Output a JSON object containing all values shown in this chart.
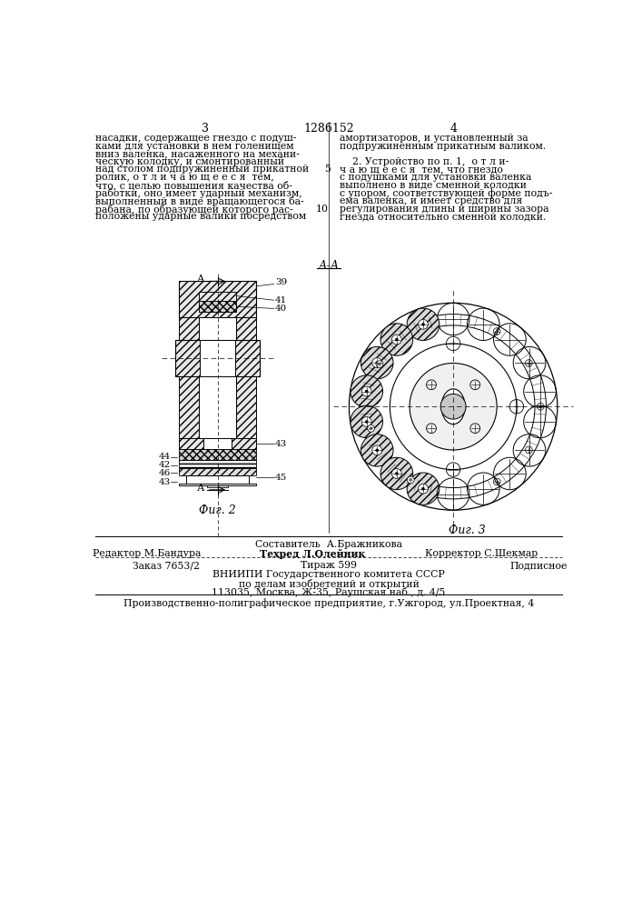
{
  "page_num_left": "3",
  "page_num_center": "1286152",
  "page_num_right": "4",
  "text_left_lines": [
    "насадки, содержащее гнездо с подуш-",
    "ками для установки в нем голенищем",
    "вниз валенка, насаженного на механи-",
    "ческую колодку, и смонтированный",
    "над столом подпружиненный прикатной",
    "ролик, о т л и ч а ю щ е е с я  тем,",
    "что, с целью повышения качества об-",
    "работки, оно имеет ударный механизм,",
    "выполненный в виде вращающегося ба-",
    "рабана, по образующей которого рас-",
    "положены ударные валики посредством"
  ],
  "text_right_lines": [
    "амортизаторов, и установленный за",
    "подпружиненным прикатным валиком.",
    "",
    "    2. Устройство по п. 1,  о т л и-",
    "ч а ю щ е е с я  тем, что гнездо",
    "с подушками для установки валенка",
    "выполнено в виде сменной колодки",
    "с упором, соответствующей форме подъ-",
    "ема валенка, и имеет средство для",
    "регулирования длины и ширины зазора",
    "гнезда относительно сменной колодки."
  ],
  "line_num_5_row": 4,
  "line_num_10_row": 9,
  "section_label": "А-А",
  "fig2_label": "Фиг. 2",
  "fig3_label": "Фиг. 3",
  "footer_composer": "Составитель  А.Бражникова",
  "footer_editor": "Редактор М.Бандура",
  "footer_techred": "Техред Л.Олейник",
  "footer_corrector": "Корректор С.Шекмар",
  "footer_order": "Заказ 7653/2",
  "footer_tirazh": "Тираж 599",
  "footer_podp": "Подписное",
  "footer_vniip1": "ВНИИПИ Государственного комитета СССР",
  "footer_vniip2": "по делам изобретений и открытий",
  "footer_vniip3": "113035, Москва, Ж-35, Раушская наб., д. 4/5",
  "footer_prod": "Производственно-полиграфическое предприятие, г.Ужгород, ул.Проектная, 4",
  "bg_color": "#ffffff",
  "text_color": "#000000"
}
